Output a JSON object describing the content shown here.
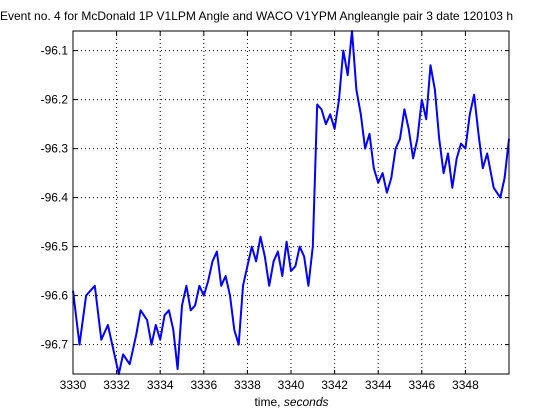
{
  "chart_data": {
    "type": "line",
    "title": "Event no. 4 for  McDonald 1P V1LPM Angle and WACO V1YPM Angleangle pair 3 date 120103 h",
    "xlabel": "time,",
    "xlabel_unit": "seconds",
    "ylabel": "",
    "xlim": [
      3330,
      3350
    ],
    "ylim": [
      -96.76,
      -96.06
    ],
    "xticks": [
      3330,
      3332,
      3334,
      3336,
      3338,
      3340,
      3342,
      3344,
      3346,
      3348
    ],
    "xtick_labels": [
      "3330",
      "3332",
      "3334",
      "3336",
      "3338",
      "3340",
      "3342",
      "3344",
      "3346",
      "3348"
    ],
    "yticks": [
      -96.1,
      -96.2,
      -96.3,
      -96.4,
      -96.5,
      -96.6,
      -96.7
    ],
    "ytick_labels": [
      "-96.1",
      "-96.2",
      "-96.3",
      "-96.4",
      "-96.5",
      "-96.6",
      "-96.7"
    ],
    "grid": true,
    "line_color": "#0000ff",
    "series": [
      {
        "x": [
          3330.0,
          3330.3,
          3330.6,
          3331.0,
          3331.3,
          3331.6,
          3331.9,
          3332.1,
          3332.3,
          3332.6,
          3332.9,
          3333.1,
          3333.4,
          3333.6,
          3333.8,
          3334.0,
          3334.2,
          3334.4,
          3334.6,
          3334.8,
          3335.0,
          3335.2,
          3335.4,
          3335.6,
          3335.8,
          3336.0,
          3336.2,
          3336.4,
          3336.6,
          3336.8,
          3337.0,
          3337.2,
          3337.4,
          3337.6,
          3337.8,
          3338.0,
          3338.2,
          3338.4,
          3338.6,
          3338.8,
          3339.0,
          3339.2,
          3339.4,
          3339.6,
          3339.8,
          3340.0,
          3340.2,
          3340.4,
          3340.6,
          3340.8,
          3341.0,
          3341.2,
          3341.4,
          3341.6,
          3341.8,
          3342.0,
          3342.2,
          3342.4,
          3342.6,
          3342.8,
          3343.0,
          3343.2,
          3343.4,
          3343.6,
          3343.8,
          3344.0,
          3344.2,
          3344.4,
          3344.6,
          3344.8,
          3345.0,
          3345.2,
          3345.4,
          3345.6,
          3345.8,
          3346.0,
          3346.2,
          3346.4,
          3346.6,
          3346.8,
          3347.0,
          3347.2,
          3347.4,
          3347.6,
          3347.8,
          3348.0,
          3348.2,
          3348.4,
          3348.6,
          3348.8,
          3349.0,
          3349.3,
          3349.6,
          3349.8,
          3350.0
        ],
        "y": [
          -96.59,
          -96.7,
          -96.6,
          -96.58,
          -96.69,
          -96.66,
          -96.72,
          -96.76,
          -96.72,
          -96.74,
          -96.68,
          -96.63,
          -96.65,
          -96.7,
          -96.66,
          -96.69,
          -96.64,
          -96.63,
          -96.67,
          -96.75,
          -96.62,
          -96.58,
          -96.63,
          -96.62,
          -96.58,
          -96.6,
          -96.57,
          -96.53,
          -96.51,
          -96.58,
          -96.56,
          -96.6,
          -96.67,
          -96.7,
          -96.58,
          -96.54,
          -96.5,
          -96.53,
          -96.48,
          -96.52,
          -96.58,
          -96.53,
          -96.51,
          -96.56,
          -96.49,
          -96.55,
          -96.54,
          -96.5,
          -96.52,
          -96.58,
          -96.5,
          -96.21,
          -96.22,
          -96.25,
          -96.23,
          -96.26,
          -96.2,
          -96.1,
          -96.15,
          -96.06,
          -96.18,
          -96.23,
          -96.3,
          -96.27,
          -96.34,
          -96.37,
          -96.35,
          -96.39,
          -96.36,
          -96.3,
          -96.28,
          -96.22,
          -96.26,
          -96.32,
          -96.28,
          -96.2,
          -96.24,
          -96.13,
          -96.18,
          -96.28,
          -96.35,
          -96.31,
          -96.38,
          -96.32,
          -96.29,
          -96.3,
          -96.23,
          -96.19,
          -96.27,
          -96.34,
          -96.31,
          -96.38,
          -96.4,
          -96.36,
          -96.28
        ]
      }
    ]
  }
}
